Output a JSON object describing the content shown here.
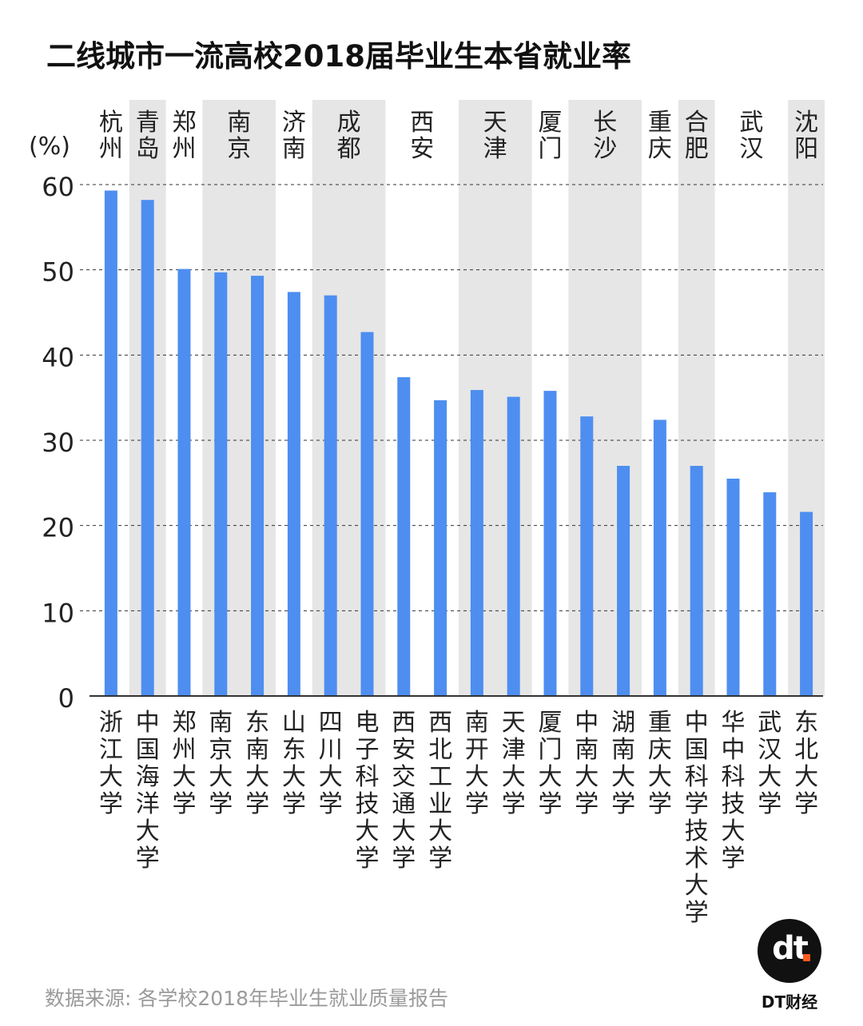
{
  "title": "二线城市一流高校2018届毕业生本省就业率",
  "source": "数据来源: 各学校2018年毕业生就业质量报告",
  "brand": "DT财经",
  "logo_text": "dt",
  "colors": {
    "bar": "#4d8ef0",
    "band": "#e6e6e6",
    "grid": "#333333",
    "axis": "#333333"
  },
  "chart_data": {
    "type": "bar",
    "unit_label": "(%)",
    "ylim": [
      0,
      60
    ],
    "yticks": [
      0,
      10,
      20,
      30,
      40,
      50,
      60
    ],
    "grid": "dashed",
    "categories": [
      "浙江大学",
      "中国海洋大学",
      "郑州大学",
      "南京大学",
      "东南大学",
      "山东大学",
      "四川大学",
      "电子科技大学",
      "西安交通大学",
      "西北工业大学",
      "南开大学",
      "天津大学",
      "厦门大学",
      "中南大学",
      "湖南大学",
      "重庆大学",
      "中国科学技术大学",
      "华中科技大学",
      "武汉大学",
      "东北大学"
    ],
    "values": [
      59.3,
      58.2,
      50.1,
      49.7,
      49.3,
      47.4,
      47.0,
      42.7,
      37.4,
      34.7,
      35.9,
      35.1,
      35.8,
      32.8,
      27.0,
      32.4,
      27.0,
      25.5,
      23.9,
      21.6
    ],
    "cities": [
      {
        "name": "杭州",
        "start": 0,
        "count": 1,
        "shaded": false
      },
      {
        "name": "青岛",
        "start": 1,
        "count": 1,
        "shaded": true
      },
      {
        "name": "郑州",
        "start": 2,
        "count": 1,
        "shaded": false
      },
      {
        "name": "南京",
        "start": 3,
        "count": 2,
        "shaded": true
      },
      {
        "name": "济南",
        "start": 5,
        "count": 1,
        "shaded": false
      },
      {
        "name": "成都",
        "start": 6,
        "count": 2,
        "shaded": true
      },
      {
        "name": "西安",
        "start": 8,
        "count": 2,
        "shaded": false
      },
      {
        "name": "天津",
        "start": 10,
        "count": 2,
        "shaded": true
      },
      {
        "name": "厦门",
        "start": 12,
        "count": 1,
        "shaded": false
      },
      {
        "name": "长沙",
        "start": 13,
        "count": 2,
        "shaded": true
      },
      {
        "name": "重庆",
        "start": 15,
        "count": 1,
        "shaded": false
      },
      {
        "name": "合肥",
        "start": 16,
        "count": 1,
        "shaded": true
      },
      {
        "name": "武汉",
        "start": 17,
        "count": 2,
        "shaded": false
      },
      {
        "name": "沈阳",
        "start": 19,
        "count": 1,
        "shaded": true
      }
    ]
  }
}
